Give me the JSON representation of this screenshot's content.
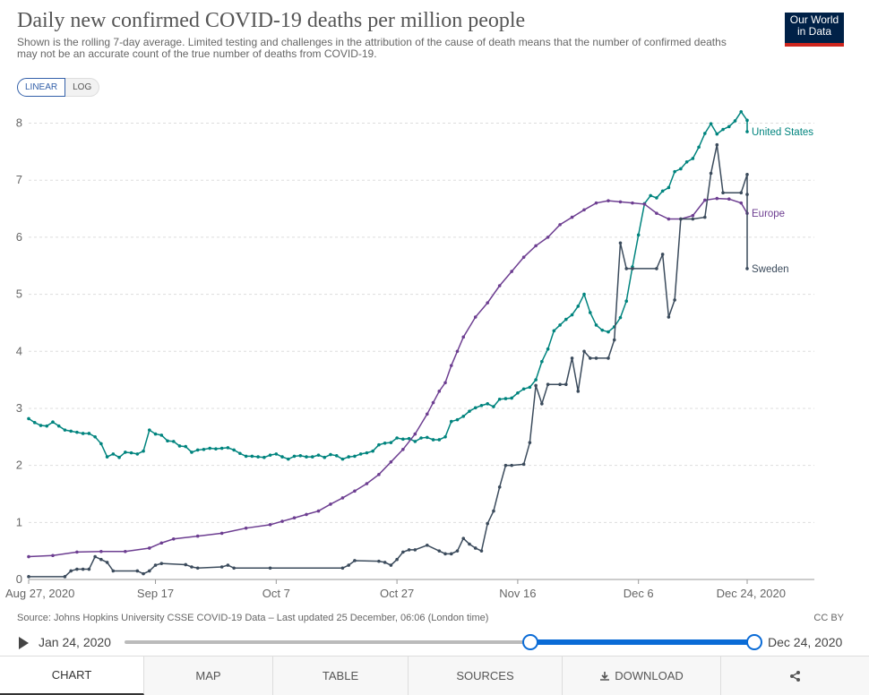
{
  "header": {
    "title": "Daily new confirmed COVID-19 deaths per million people",
    "subtitle": "Shown is the rolling 7-day average. Limited testing and challenges in the attribution of the cause of death means that the number of confirmed deaths may not be an accurate count of the true number of deaths from COVID-19.",
    "logo_line1": "Our World",
    "logo_line2": "in Data"
  },
  "controls": {
    "linear_label": "LINEAR",
    "log_label": "LOG"
  },
  "footer": {
    "source": "Source: Johns Hopkins University CSSE COVID-19 Data – Last updated 25 December, 06:06 (London time)",
    "license": "CC BY"
  },
  "timeline": {
    "start": "Jan 24, 2020",
    "end": "Dec 24, 2020",
    "range_start_fraction": 0.64
  },
  "tabs": {
    "chart": "CHART",
    "map": "MAP",
    "table": "TABLE",
    "sources": "SOURCES",
    "download": "DOWNLOAD"
  },
  "icons": {
    "play": "play-icon",
    "download": "download-icon",
    "share": "share-icon"
  },
  "chart_data": {
    "type": "line",
    "x_ticks": [
      "Aug 27, 2020",
      "Sep 17",
      "Oct 7",
      "Oct 27",
      "Nov 16",
      "Dec 6",
      "Dec 24, 2020"
    ],
    "x_tick_days": [
      0,
      21,
      41,
      61,
      81,
      101,
      119
    ],
    "x_range_days": [
      0,
      119
    ],
    "ylim": [
      0,
      8.5
    ],
    "y_ticks": [
      0,
      1,
      2,
      3,
      4,
      5,
      6,
      7,
      8
    ],
    "grid": "horizontal dotted",
    "series": [
      {
        "name": "United States",
        "color": "#00847e",
        "points": [
          [
            0,
            2.82
          ],
          [
            1,
            2.75
          ],
          [
            2,
            2.7
          ],
          [
            3,
            2.69
          ],
          [
            4,
            2.76
          ],
          [
            5,
            2.69
          ],
          [
            6,
            2.62
          ],
          [
            7,
            2.6
          ],
          [
            8,
            2.58
          ],
          [
            9,
            2.56
          ],
          [
            10,
            2.56
          ],
          [
            11,
            2.5
          ],
          [
            12,
            2.38
          ],
          [
            13,
            2.15
          ],
          [
            14,
            2.2
          ],
          [
            15,
            2.14
          ],
          [
            16,
            2.23
          ],
          [
            17,
            2.22
          ],
          [
            18,
            2.2
          ],
          [
            19,
            2.25
          ],
          [
            20,
            2.62
          ],
          [
            21,
            2.55
          ],
          [
            22,
            2.53
          ],
          [
            23,
            2.43
          ],
          [
            24,
            2.42
          ],
          [
            25,
            2.34
          ],
          [
            26,
            2.33
          ],
          [
            27,
            2.23
          ],
          [
            28,
            2.27
          ],
          [
            29,
            2.28
          ],
          [
            30,
            2.3
          ],
          [
            31,
            2.29
          ],
          [
            32,
            2.3
          ],
          [
            33,
            2.31
          ],
          [
            34,
            2.27
          ],
          [
            35,
            2.21
          ],
          [
            36,
            2.16
          ],
          [
            37,
            2.16
          ],
          [
            38,
            2.15
          ],
          [
            39,
            2.14
          ],
          [
            40,
            2.18
          ],
          [
            41,
            2.2
          ],
          [
            42,
            2.15
          ],
          [
            43,
            2.11
          ],
          [
            44,
            2.16
          ],
          [
            45,
            2.17
          ],
          [
            46,
            2.15
          ],
          [
            47,
            2.15
          ],
          [
            48,
            2.18
          ],
          [
            49,
            2.14
          ],
          [
            50,
            2.19
          ],
          [
            51,
            2.17
          ],
          [
            52,
            2.11
          ],
          [
            53,
            2.15
          ],
          [
            54,
            2.16
          ],
          [
            55,
            2.2
          ],
          [
            56,
            2.22
          ],
          [
            57,
            2.25
          ],
          [
            58,
            2.36
          ],
          [
            59,
            2.39
          ],
          [
            60,
            2.4
          ],
          [
            61,
            2.48
          ],
          [
            62,
            2.46
          ],
          [
            63,
            2.47
          ],
          [
            64,
            2.42
          ],
          [
            65,
            2.48
          ],
          [
            66,
            2.49
          ],
          [
            67,
            2.45
          ],
          [
            68,
            2.45
          ],
          [
            69,
            2.5
          ],
          [
            70,
            2.77
          ],
          [
            71,
            2.8
          ],
          [
            72,
            2.86
          ],
          [
            73,
            2.95
          ],
          [
            74,
            3.01
          ],
          [
            75,
            3.05
          ],
          [
            76,
            3.08
          ],
          [
            77,
            3.03
          ],
          [
            78,
            3.16
          ],
          [
            79,
            3.17
          ],
          [
            80,
            3.18
          ],
          [
            81,
            3.27
          ],
          [
            82,
            3.34
          ],
          [
            83,
            3.37
          ],
          [
            84,
            3.5
          ],
          [
            85,
            3.82
          ],
          [
            86,
            4.04
          ],
          [
            87,
            4.36
          ],
          [
            88,
            4.46
          ],
          [
            89,
            4.56
          ],
          [
            90,
            4.64
          ],
          [
            91,
            4.79
          ],
          [
            92,
            5.0
          ],
          [
            93,
            4.68
          ],
          [
            94,
            4.46
          ],
          [
            95,
            4.37
          ],
          [
            96,
            4.34
          ],
          [
            97,
            4.43
          ],
          [
            98,
            4.59
          ],
          [
            99,
            4.88
          ],
          [
            100,
            5.48
          ],
          [
            101,
            6.04
          ],
          [
            102,
            6.59
          ],
          [
            103,
            6.73
          ],
          [
            104,
            6.69
          ],
          [
            105,
            6.81
          ],
          [
            106,
            6.87
          ],
          [
            107,
            7.15
          ],
          [
            108,
            7.2
          ],
          [
            109,
            7.32
          ],
          [
            110,
            7.38
          ],
          [
            111,
            7.58
          ],
          [
            112,
            7.82
          ],
          [
            113,
            7.99
          ],
          [
            114,
            7.81
          ],
          [
            115,
            7.89
          ],
          [
            116,
            7.94
          ],
          [
            117,
            8.04
          ],
          [
            118,
            8.2
          ],
          [
            119,
            8.05
          ],
          [
            120,
            7.85
          ]
        ]
      },
      {
        "name": "Europe",
        "color": "#6d3e91",
        "points": [
          [
            0,
            0.4
          ],
          [
            4,
            0.42
          ],
          [
            8,
            0.48
          ],
          [
            12,
            0.49
          ],
          [
            16,
            0.49
          ],
          [
            20,
            0.55
          ],
          [
            22,
            0.64
          ],
          [
            24,
            0.71
          ],
          [
            28,
            0.76
          ],
          [
            32,
            0.81
          ],
          [
            36,
            0.9
          ],
          [
            40,
            0.96
          ],
          [
            42,
            1.02
          ],
          [
            44,
            1.08
          ],
          [
            46,
            1.14
          ],
          [
            48,
            1.2
          ],
          [
            50,
            1.32
          ],
          [
            52,
            1.43
          ],
          [
            54,
            1.55
          ],
          [
            56,
            1.68
          ],
          [
            58,
            1.84
          ],
          [
            60,
            2.06
          ],
          [
            62,
            2.28
          ],
          [
            64,
            2.55
          ],
          [
            66,
            2.9
          ],
          [
            67,
            3.1
          ],
          [
            68,
            3.3
          ],
          [
            69,
            3.45
          ],
          [
            70,
            3.75
          ],
          [
            71,
            4.0
          ],
          [
            72,
            4.25
          ],
          [
            74,
            4.6
          ],
          [
            76,
            4.85
          ],
          [
            78,
            5.15
          ],
          [
            80,
            5.4
          ],
          [
            82,
            5.65
          ],
          [
            84,
            5.85
          ],
          [
            86,
            6.0
          ],
          [
            88,
            6.22
          ],
          [
            90,
            6.35
          ],
          [
            92,
            6.48
          ],
          [
            94,
            6.6
          ],
          [
            96,
            6.64
          ],
          [
            98,
            6.62
          ],
          [
            100,
            6.6
          ],
          [
            102,
            6.58
          ],
          [
            104,
            6.42
          ],
          [
            106,
            6.32
          ],
          [
            108,
            6.32
          ],
          [
            110,
            6.38
          ],
          [
            112,
            6.65
          ],
          [
            114,
            6.68
          ],
          [
            116,
            6.67
          ],
          [
            118,
            6.6
          ],
          [
            120,
            6.42
          ]
        ]
      },
      {
        "name": "Sweden",
        "color": "#3b4b5c",
        "points": [
          [
            0,
            0.05
          ],
          [
            6,
            0.05
          ],
          [
            7,
            0.15
          ],
          [
            8,
            0.18
          ],
          [
            9,
            0.18
          ],
          [
            10,
            0.18
          ],
          [
            11,
            0.4
          ],
          [
            12,
            0.35
          ],
          [
            13,
            0.3
          ],
          [
            14,
            0.15
          ],
          [
            18,
            0.15
          ],
          [
            19,
            0.1
          ],
          [
            20,
            0.15
          ],
          [
            21,
            0.25
          ],
          [
            22,
            0.28
          ],
          [
            26,
            0.26
          ],
          [
            27,
            0.22
          ],
          [
            28,
            0.2
          ],
          [
            32,
            0.22
          ],
          [
            33,
            0.25
          ],
          [
            34,
            0.2
          ],
          [
            40,
            0.2
          ],
          [
            52,
            0.2
          ],
          [
            53,
            0.25
          ],
          [
            54,
            0.33
          ],
          [
            58,
            0.32
          ],
          [
            59,
            0.3
          ],
          [
            60,
            0.25
          ],
          [
            61,
            0.35
          ],
          [
            62,
            0.48
          ],
          [
            63,
            0.52
          ],
          [
            64,
            0.52
          ],
          [
            66,
            0.6
          ],
          [
            68,
            0.5
          ],
          [
            69,
            0.45
          ],
          [
            70,
            0.45
          ],
          [
            71,
            0.5
          ],
          [
            72,
            0.72
          ],
          [
            73,
            0.62
          ],
          [
            74,
            0.55
          ],
          [
            75,
            0.5
          ],
          [
            76,
            0.98
          ],
          [
            77,
            1.2
          ],
          [
            78,
            1.62
          ],
          [
            79,
            2.0
          ],
          [
            80,
            2.0
          ],
          [
            82,
            2.02
          ],
          [
            83,
            2.4
          ],
          [
            84,
            3.4
          ],
          [
            85,
            3.08
          ],
          [
            86,
            3.42
          ],
          [
            88,
            3.42
          ],
          [
            89,
            3.42
          ],
          [
            90,
            3.88
          ],
          [
            91,
            3.3
          ],
          [
            92,
            4.0
          ],
          [
            93,
            3.88
          ],
          [
            94,
            3.88
          ],
          [
            96,
            3.88
          ],
          [
            97,
            4.2
          ],
          [
            98,
            5.9
          ],
          [
            99,
            5.45
          ],
          [
            100,
            5.45
          ],
          [
            104,
            5.45
          ],
          [
            105,
            5.7
          ],
          [
            106,
            4.6
          ],
          [
            107,
            4.9
          ],
          [
            108,
            6.32
          ],
          [
            110,
            6.32
          ],
          [
            112,
            6.35
          ],
          [
            113,
            7.12
          ],
          [
            114,
            7.62
          ],
          [
            115,
            6.78
          ],
          [
            118,
            6.78
          ],
          [
            119,
            7.1
          ],
          [
            120,
            6.75
          ],
          [
            121,
            5.45
          ]
        ]
      }
    ]
  }
}
